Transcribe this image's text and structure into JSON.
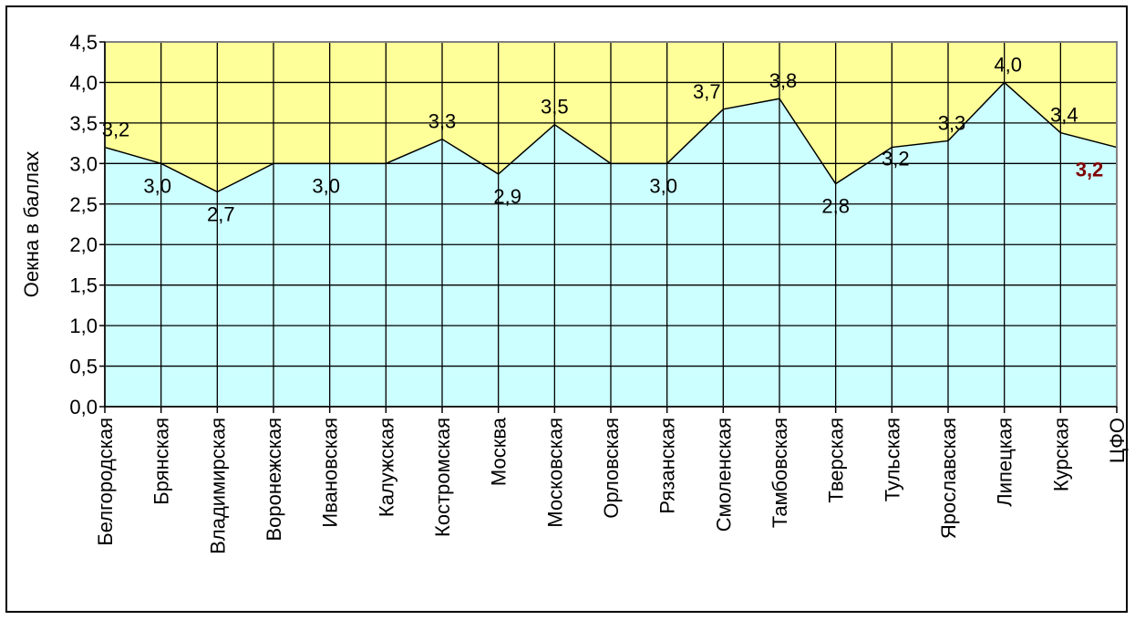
{
  "chart_data": {
    "type": "area",
    "ylabel": "Оекна в баллах",
    "xlabel": "",
    "title": "",
    "ylim": [
      0,
      4.5
    ],
    "ytick_step": 0.5,
    "y_tick_labels": [
      "0,0",
      "0,5",
      "1,0",
      "1,5",
      "2,0",
      "2,5",
      "3,0",
      "3,5",
      "4,0",
      "4,5"
    ],
    "grid": true,
    "categories": [
      "Белгородская",
      "Брянская",
      "Владимирская",
      "Воронежская",
      "Ивановская",
      "Калужская",
      "Костромская",
      "Москва",
      "Московская",
      "Орловская",
      "Рязанская",
      "Смоленская",
      "Тамбовская",
      "Тверская",
      "Тульская",
      "Ярославская",
      "Липецкая",
      "Курская",
      "ЦФО"
    ],
    "values": [
      3.2,
      3.0,
      2.65,
      3.0,
      3.0,
      3.0,
      3.3,
      2.87,
      3.48,
      3.0,
      3.0,
      3.67,
      3.8,
      2.75,
      3.2,
      3.28,
      4.0,
      3.38,
      3.2
    ],
    "data_labels": [
      "3,2",
      "3,0",
      "2,7",
      "",
      "3,0",
      "",
      "3,3",
      "2,9",
      "3,5",
      "",
      "3,0",
      "3,7",
      "3,8",
      "2,8",
      "3,2",
      "3,3",
      "4,0",
      "3,4",
      "3,2"
    ],
    "highlight_label_index": 18,
    "colors": {
      "area_fill": "#ccffff",
      "plot_background": "#ffff99",
      "grid": "#000000",
      "line": "#000000",
      "highlight_label": "#800000",
      "plot_border": "#808080"
    }
  }
}
